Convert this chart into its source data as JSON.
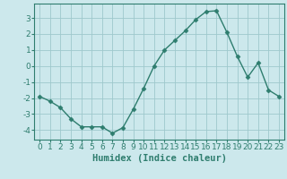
{
  "x": [
    0,
    1,
    2,
    3,
    4,
    5,
    6,
    7,
    8,
    9,
    10,
    11,
    12,
    13,
    14,
    15,
    16,
    17,
    18,
    19,
    20,
    21,
    22,
    23
  ],
  "y": [
    -1.9,
    -2.2,
    -2.6,
    -3.3,
    -3.8,
    -3.8,
    -3.8,
    -4.2,
    -3.85,
    -2.7,
    -1.4,
    0.0,
    1.0,
    1.6,
    2.2,
    2.9,
    3.4,
    3.45,
    2.1,
    0.6,
    -0.7,
    0.2,
    -1.5,
    -1.9
  ],
  "line_color": "#2e7d6e",
  "marker": "D",
  "markersize": 2.5,
  "linewidth": 1.0,
  "bg_color": "#cce8ec",
  "grid_color": "#9ec8cc",
  "xlabel": "Humidex (Indice chaleur)",
  "xlim": [
    -0.5,
    23.5
  ],
  "ylim": [
    -4.6,
    3.9
  ],
  "xticks": [
    0,
    1,
    2,
    3,
    4,
    5,
    6,
    7,
    8,
    9,
    10,
    11,
    12,
    13,
    14,
    15,
    16,
    17,
    18,
    19,
    20,
    21,
    22,
    23
  ],
  "yticks": [
    -4,
    -3,
    -2,
    -1,
    0,
    1,
    2,
    3
  ],
  "tick_fontsize": 6.5,
  "label_fontsize": 7.5
}
